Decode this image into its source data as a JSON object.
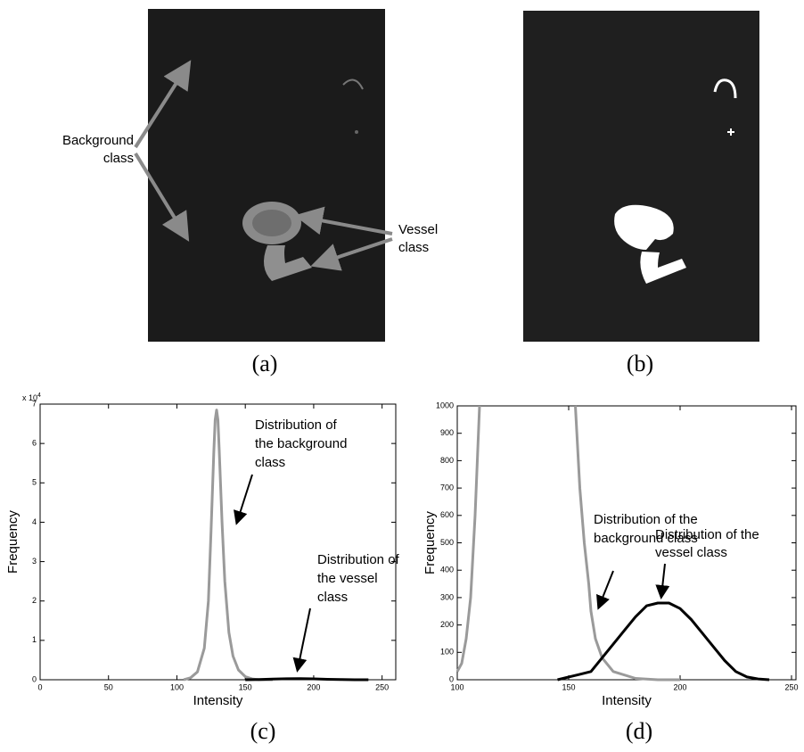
{
  "panel_a": {
    "caption": "(a)",
    "labels": [
      {
        "lines": [
          "Background",
          "class"
        ]
      },
      {
        "lines": [
          "Vessel",
          "class"
        ]
      }
    ]
  },
  "panel_b": {
    "caption": "(b)"
  },
  "charts": [
    {
      "type": "line",
      "caption": "(c)",
      "xlabel": "Intensity",
      "ylabel": "Frequency",
      "multiplier": {
        "base": "x 10",
        "exp": "4"
      },
      "xlim": [
        0,
        260
      ],
      "ylim": [
        0,
        70000
      ],
      "xticks": [
        0,
        50,
        100,
        150,
        200,
        250
      ],
      "yticks": [
        0,
        {
          "value": 10000,
          "label": "1"
        },
        {
          "value": 20000,
          "label": "2"
        },
        {
          "value": 30000,
          "label": "3"
        },
        {
          "value": 40000,
          "label": "4"
        },
        {
          "value": 50000,
          "label": "5"
        },
        {
          "value": 60000,
          "label": "6"
        },
        {
          "value": 70000,
          "label": "7"
        }
      ],
      "series": [
        {
          "color": "#9a9a9a",
          "x": [
            105,
            110,
            115,
            120,
            123,
            125,
            127,
            128,
            129,
            130,
            131,
            133,
            135,
            138,
            141,
            145,
            150,
            155,
            160,
            170
          ],
          "values": [
            0,
            500,
            2000,
            8000,
            20000,
            38000,
            58000,
            66000,
            68500,
            66000,
            58000,
            40000,
            25000,
            12000,
            6000,
            2500,
            800,
            200,
            0,
            0
          ]
        },
        {
          "color": "#000000",
          "x": [
            150,
            160,
            170,
            180,
            190,
            200,
            210,
            220,
            230,
            240
          ],
          "values": [
            0,
            50,
            150,
            250,
            280,
            220,
            120,
            40,
            5,
            0
          ]
        }
      ],
      "annotations": [
        {
          "lines": [
            "Distribution of",
            "the background",
            "class"
          ]
        },
        {
          "lines": [
            "Distribution of",
            "the vessel",
            "class"
          ]
        }
      ]
    },
    {
      "type": "line",
      "caption": "(d)",
      "xlabel": "Intensity",
      "ylabel": "Frequency",
      "xlim": [
        100,
        252
      ],
      "ylim": [
        0,
        1000
      ],
      "xticks": [
        100,
        150,
        200,
        250
      ],
      "yticks": [
        0,
        100,
        200,
        300,
        400,
        500,
        600,
        700,
        800,
        900,
        1000
      ],
      "series": [
        {
          "color": "#9a9a9a",
          "x": [
            100,
            102,
            104,
            106,
            108,
            109,
            110,
            130,
            153,
            154,
            155,
            157,
            159,
            160,
            162,
            165,
            170,
            180,
            190,
            200
          ],
          "values": [
            30,
            60,
            150,
            300,
            600,
            800,
            1000,
            null,
            1000,
            850,
            700,
            500,
            350,
            250,
            150,
            80,
            30,
            5,
            0,
            0
          ]
        },
        {
          "color": "#000000",
          "x": [
            145,
            150,
            155,
            160,
            165,
            170,
            175,
            180,
            185,
            190,
            195,
            200,
            205,
            210,
            215,
            220,
            225,
            230,
            235,
            240
          ],
          "values": [
            0,
            10,
            20,
            30,
            80,
            130,
            180,
            230,
            270,
            280,
            280,
            260,
            220,
            170,
            120,
            70,
            30,
            10,
            3,
            0
          ]
        }
      ],
      "annotations": [
        {
          "lines": [
            "Distribution of the",
            "background class"
          ]
        },
        {
          "lines": [
            "Distribution of the",
            "vessel class"
          ]
        }
      ]
    }
  ]
}
